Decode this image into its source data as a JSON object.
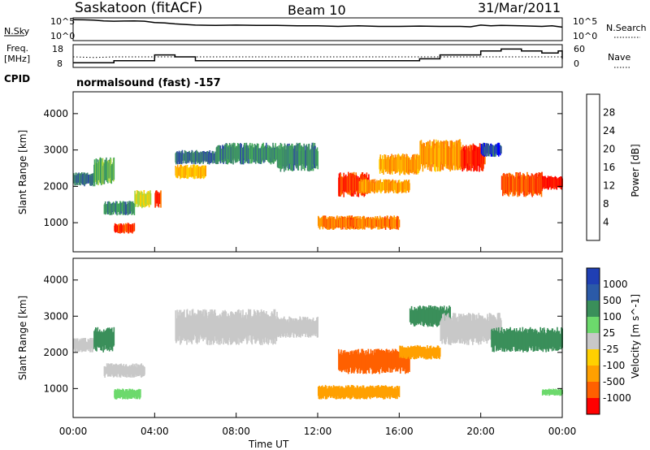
{
  "header": {
    "station": "Saskatoon (fitACF)",
    "beam": "Beam 10",
    "date": "31/Mar/2011"
  },
  "noise_panel": {
    "left_label": "N.Sky",
    "right_label": "N.Search",
    "ytick_top": "10^5",
    "ytick_bottom": "10^0",
    "right_tick_top": "10^5",
    "right_tick_bottom": "10^0"
  },
  "freq_panel": {
    "left_label_line1": "Freq.",
    "left_label_line2": "[MHz]",
    "yticks_left": [
      "18",
      "8"
    ],
    "right_label": "Nave",
    "yticks_right": [
      "60",
      "0"
    ]
  },
  "cpid": {
    "label": "CPID",
    "text": "normalsound (fast) -157"
  },
  "time_axis": {
    "ticks": [
      "00:00",
      "04:00",
      "08:00",
      "12:00",
      "16:00",
      "20:00",
      "00:00"
    ],
    "label": "Time UT"
  },
  "colors": {
    "power": [
      "#0000ff",
      "#2f4fa0",
      "#3e8a6a",
      "#43a85a",
      "#a8d640",
      "#ffd000",
      "#ffa000",
      "#ff7a00",
      "#ff3000",
      "#ff0000"
    ],
    "velocity": [
      "#ff0000",
      "#ff6000",
      "#ffa000",
      "#ffd000",
      "#c8c8c8",
      "#6cd96c",
      "#3a8f5a",
      "#2b5aa8",
      "#1f3fb4"
    ]
  },
  "chart_data": [
    {
      "type": "line",
      "panel": "noise",
      "xlabel": "",
      "ylabel": "N.Sky",
      "scale": "log",
      "ylim": [
        1,
        100000
      ],
      "x_hours": [
        0,
        0.5,
        1,
        1.5,
        2,
        2.5,
        3,
        3.5,
        4,
        4.5,
        5,
        6,
        7,
        8,
        9,
        10,
        11,
        12,
        13,
        14,
        15,
        16,
        17,
        18,
        19,
        19.5,
        20,
        20.5,
        21,
        22,
        23,
        23.5,
        24
      ],
      "series": [
        {
          "name": "N.Sky",
          "values": [
            60000,
            55000,
            45000,
            30000,
            25000,
            28000,
            30000,
            25000,
            12000,
            10000,
            6000,
            3000,
            2500,
            3000,
            2500,
            2500,
            2000,
            2000,
            1500,
            2000,
            1500,
            1500,
            1800,
            1500,
            1500,
            1200,
            3000,
            2000,
            2500,
            2000,
            1500,
            2000,
            1000
          ]
        }
      ]
    },
    {
      "type": "line",
      "panel": "frequency",
      "xlabel": "",
      "ylabel": "Freq. [MHz]",
      "ylim": [
        8,
        18
      ],
      "x_hours": [
        0,
        1,
        2,
        3,
        3.8,
        4,
        4.6,
        5,
        6,
        7,
        8,
        9,
        10,
        11,
        12,
        13,
        14,
        15,
        16,
        17,
        18,
        19,
        20,
        21,
        22,
        23,
        23.8,
        24
      ],
      "series": [
        {
          "name": "Freq.",
          "values": [
            10,
            10,
            11,
            11,
            11,
            14,
            14,
            13,
            11,
            11,
            11,
            11,
            11,
            11,
            11,
            11,
            11,
            11,
            11,
            12,
            14,
            14,
            16,
            17,
            16,
            15,
            16,
            12
          ]
        },
        {
          "name": "Nave",
          "values": [
            30,
            28,
            30,
            30,
            30,
            30,
            30,
            30,
            30,
            30,
            30,
            30,
            30,
            30,
            30,
            30,
            30,
            30,
            30,
            30,
            30,
            30,
            30,
            30,
            30,
            30,
            30,
            30
          ]
        }
      ]
    },
    {
      "type": "heatmap",
      "panel": "power",
      "xlabel": "",
      "ylabel": "Slant Range [km]",
      "xlim": [
        0,
        24
      ],
      "ylim": [
        200,
        4600
      ],
      "yticks": [
        1000,
        2000,
        3000,
        4000
      ],
      "colorbar": {
        "label": "Power [dB]",
        "ticks": [
          4,
          8,
          12,
          16,
          20,
          24,
          28
        ]
      },
      "regions": [
        {
          "t0": 0.0,
          "t1": 1.0,
          "r0": 2000,
          "r1": 2400,
          "value": 6
        },
        {
          "t0": 1.0,
          "t1": 2.0,
          "r0": 2000,
          "r1": 2800,
          "value": 10
        },
        {
          "t0": 1.5,
          "t1": 3.0,
          "r0": 1200,
          "r1": 1600,
          "value": 8
        },
        {
          "t0": 2.0,
          "t1": 3.0,
          "r0": 700,
          "r1": 1000,
          "value": 26
        },
        {
          "t0": 3.0,
          "t1": 3.8,
          "r0": 1400,
          "r1": 1900,
          "value": 14
        },
        {
          "t0": 4.0,
          "t1": 4.3,
          "r0": 1400,
          "r1": 1900,
          "value": 26
        },
        {
          "t0": 5.0,
          "t1": 6.5,
          "r0": 2200,
          "r1": 2600,
          "value": 18
        },
        {
          "t0": 5.0,
          "t1": 7.0,
          "r0": 2600,
          "r1": 3000,
          "value": 6
        },
        {
          "t0": 7.0,
          "t1": 10.0,
          "r0": 2600,
          "r1": 3200,
          "value": 8
        },
        {
          "t0": 10.0,
          "t1": 12.0,
          "r0": 2400,
          "r1": 3200,
          "value": 8
        },
        {
          "t0": 12.0,
          "t1": 14.0,
          "r0": 800,
          "r1": 1200,
          "value": 22
        },
        {
          "t0": 13.0,
          "t1": 14.5,
          "r0": 1700,
          "r1": 2400,
          "value": 26
        },
        {
          "t0": 14.0,
          "t1": 16.5,
          "r0": 1800,
          "r1": 2200,
          "value": 20
        },
        {
          "t0": 13.5,
          "t1": 16.0,
          "r0": 800,
          "r1": 1200,
          "value": 22
        },
        {
          "t0": 15.0,
          "t1": 17.0,
          "r0": 2300,
          "r1": 2900,
          "value": 20
        },
        {
          "t0": 17.0,
          "t1": 19.0,
          "r0": 2400,
          "r1": 3300,
          "value": 20
        },
        {
          "t0": 19.0,
          "t1": 20.2,
          "r0": 2400,
          "r1": 3200,
          "value": 26
        },
        {
          "t0": 20.0,
          "t1": 21.0,
          "r0": 2800,
          "r1": 3200,
          "value": 4
        },
        {
          "t0": 21.0,
          "t1": 23.0,
          "r0": 1700,
          "r1": 2400,
          "value": 24
        },
        {
          "t0": 23.0,
          "t1": 24.0,
          "r0": 1900,
          "r1": 2300,
          "value": 28
        }
      ]
    },
    {
      "type": "heatmap",
      "panel": "velocity",
      "xlabel": "Time UT",
      "ylabel": "Slant Range [km]",
      "xlim": [
        0,
        24
      ],
      "ylim": [
        200,
        4600
      ],
      "yticks": [
        1000,
        2000,
        3000,
        4000
      ],
      "colorbar": {
        "label": "Velocity [m s^-1]",
        "ticks": [
          "1000",
          "500",
          "100",
          "25",
          "-25",
          "-100",
          "-500",
          "-1000"
        ]
      },
      "regions": [
        {
          "t0": 0.0,
          "t1": 1.0,
          "r0": 2000,
          "r1": 2400,
          "value": 0
        },
        {
          "t0": 1.0,
          "t1": 2.0,
          "r0": 2000,
          "r1": 2700,
          "value": 200
        },
        {
          "t0": 1.5,
          "t1": 3.5,
          "r0": 1300,
          "r1": 1700,
          "value": 0
        },
        {
          "t0": 2.0,
          "t1": 3.3,
          "r0": 700,
          "r1": 1000,
          "value": 60
        },
        {
          "t0": 5.0,
          "t1": 10.0,
          "r0": 2200,
          "r1": 3200,
          "value": 0
        },
        {
          "t0": 10.0,
          "t1": 12.0,
          "r0": 2400,
          "r1": 3000,
          "value": 0
        },
        {
          "t0": 12.0,
          "t1": 16.0,
          "r0": 700,
          "r1": 1100,
          "value": -150
        },
        {
          "t0": 13.0,
          "t1": 16.5,
          "r0": 1400,
          "r1": 2100,
          "value": -600
        },
        {
          "t0": 16.0,
          "t1": 18.0,
          "r0": 1800,
          "r1": 2200,
          "value": -400
        },
        {
          "t0": 16.5,
          "t1": 18.5,
          "r0": 2700,
          "r1": 3300,
          "value": 300
        },
        {
          "t0": 18.0,
          "t1": 21.0,
          "r0": 2200,
          "r1": 3100,
          "value": 0
        },
        {
          "t0": 20.5,
          "t1": 24.0,
          "r0": 2000,
          "r1": 2700,
          "value": 300
        },
        {
          "t0": 23.0,
          "t1": 24.0,
          "r0": 800,
          "r1": 1000,
          "value": 60
        }
      ]
    }
  ]
}
